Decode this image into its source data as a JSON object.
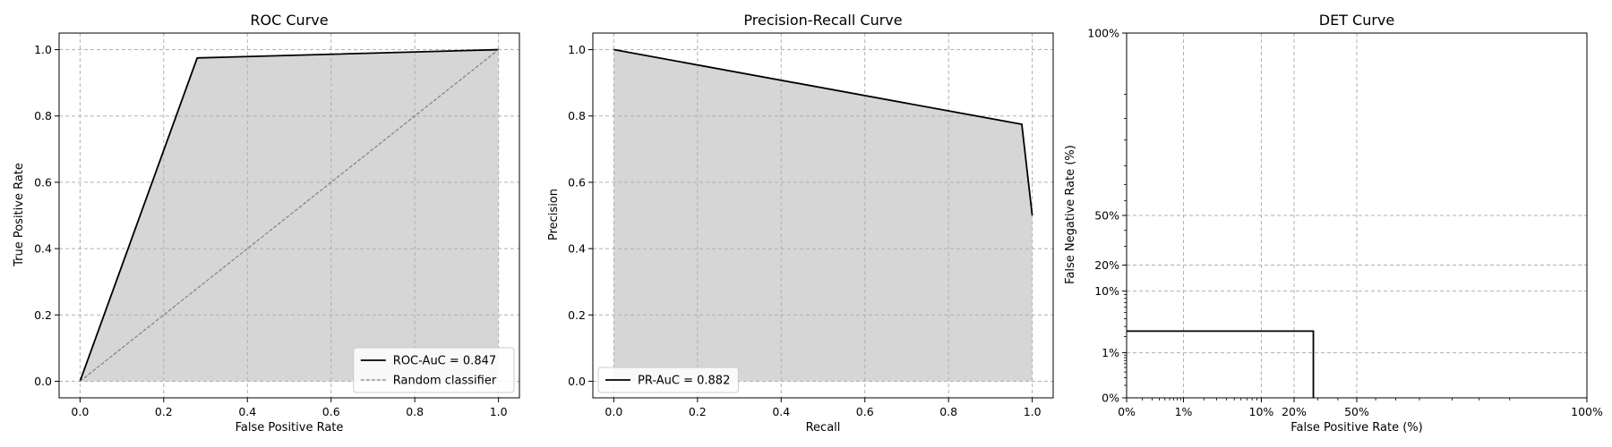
{
  "chart_data": [
    {
      "type": "line",
      "title": "ROC Curve",
      "xlabel": "False Positive Rate",
      "ylabel": "True Positive Rate",
      "xlim": [
        -0.05,
        1.05
      ],
      "ylim": [
        -0.05,
        1.05
      ],
      "xticks": [
        0.0,
        0.2,
        0.4,
        0.6,
        0.8,
        1.0
      ],
      "yticks": [
        0.0,
        0.2,
        0.4,
        0.6,
        0.8,
        1.0
      ],
      "xtick_labels": [
        "0.0",
        "0.2",
        "0.4",
        "0.6",
        "0.8",
        "1.0"
      ],
      "ytick_labels": [
        "0.0",
        "0.2",
        "0.4",
        "0.6",
        "0.8",
        "1.0"
      ],
      "grid": true,
      "legend_position": "lower-right",
      "fill_under": true,
      "series": [
        {
          "name": "ROC-AuC = 0.847",
          "style": "solid",
          "color": "#000000",
          "x": [
            0.0,
            0.28,
            1.0
          ],
          "y": [
            0.0,
            0.975,
            1.0
          ]
        },
        {
          "name": "Random classifier",
          "style": "dashed",
          "color": "#808080",
          "x": [
            0.0,
            1.0
          ],
          "y": [
            0.0,
            1.0
          ]
        }
      ]
    },
    {
      "type": "line",
      "title": "Precision-Recall Curve",
      "xlabel": "Recall",
      "ylabel": "Precision",
      "xlim": [
        -0.05,
        1.05
      ],
      "ylim": [
        -0.05,
        1.05
      ],
      "xticks": [
        0.0,
        0.2,
        0.4,
        0.6,
        0.8,
        1.0
      ],
      "yticks": [
        0.0,
        0.2,
        0.4,
        0.6,
        0.8,
        1.0
      ],
      "xtick_labels": [
        "0.0",
        "0.2",
        "0.4",
        "0.6",
        "0.8",
        "1.0"
      ],
      "ytick_labels": [
        "0.0",
        "0.2",
        "0.4",
        "0.6",
        "0.8",
        "1.0"
      ],
      "grid": true,
      "legend_position": "lower-left",
      "fill_under": true,
      "series": [
        {
          "name": "PR-AuC = 0.882",
          "style": "solid",
          "color": "#000000",
          "x": [
            0.0,
            0.975,
            1.0
          ],
          "y": [
            1.0,
            0.775,
            0.5
          ]
        }
      ]
    },
    {
      "type": "line",
      "title": "DET Curve",
      "xlabel": "False Positive Rate (%)",
      "ylabel": "False Negative Rate (%)",
      "scale": "normal-deviate (probit)",
      "xlim": [
        0.0,
        1.0
      ],
      "ylim": [
        0.0,
        1.0
      ],
      "xticks": [
        0.0,
        0.01,
        0.1,
        0.2,
        0.5,
        1.0
      ],
      "yticks": [
        0.0,
        0.01,
        0.1,
        0.2,
        0.5,
        1.0
      ],
      "xtick_labels": [
        "0%",
        "1%",
        "10%",
        "20%",
        "50%",
        "100%"
      ],
      "ytick_labels": [
        "0%",
        "1%",
        "10%",
        "20%",
        "50%",
        "100%"
      ],
      "grid": true,
      "fill_under": false,
      "series": [
        {
          "style": "solid",
          "color": "#000000",
          "x": [
            0.0,
            0.28,
            0.28
          ],
          "y": [
            0.025,
            0.025,
            0.0
          ]
        }
      ]
    }
  ],
  "colors": {
    "fill": "#d6d6d6",
    "grid": "#b0b0b0",
    "line": "#000000",
    "random": "#808080"
  }
}
